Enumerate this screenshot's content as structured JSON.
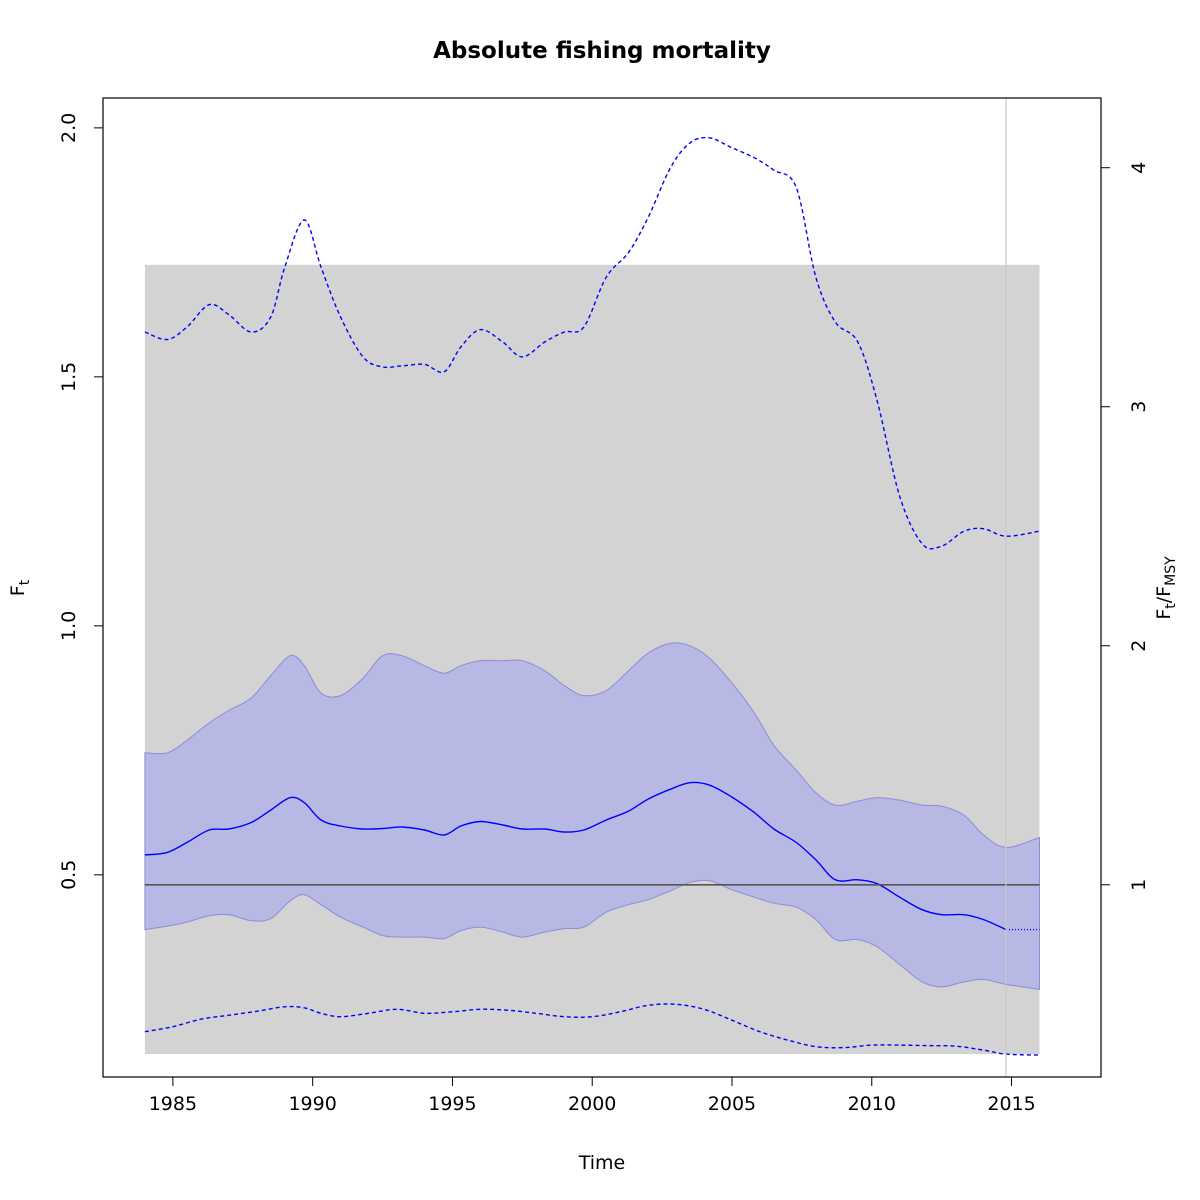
{
  "chart_data": {
    "type": "line",
    "title": "Absolute fishing mortality",
    "xlabel": "Time",
    "ylabel": "F",
    "ylabel_sub": "t",
    "y2label": {
      "num": "F",
      "num_sub": "t",
      "sep": "/",
      "den": "F",
      "den_sub": "MSY"
    },
    "xlim": [
      1982.5,
      2018.2
    ],
    "ylim": [
      0.094,
      2.06
    ],
    "x_ticks": [
      1985,
      1990,
      1995,
      2000,
      2005,
      2010,
      2015
    ],
    "x_tick_labels": [
      "1985",
      "1990",
      "1995",
      "2000",
      "2005",
      "2010",
      "2015"
    ],
    "y_ticks": [
      0.5,
      1.0,
      1.5,
      2.0
    ],
    "y_tick_labels": [
      "0.5",
      "1.0",
      "1.5",
      "2.0"
    ],
    "fmsy": 0.48,
    "y2_ticks": [
      1,
      2,
      3,
      4
    ],
    "y2_tick_labels": [
      "1",
      "2",
      "3",
      "4"
    ],
    "grey_region": {
      "x": [
        1984,
        2016
      ],
      "y": [
        0.14,
        1.725
      ]
    },
    "vertical_line_x": 2014.8,
    "colors": {
      "estimate": "#0000ff",
      "ci_fill": "#b3b3e6",
      "grey_region": "#d3d3d3",
      "fmsy_line": "#555555",
      "vertical_line": "#c8c8c8"
    },
    "series": [
      {
        "style": "solid",
        "x": [
          1984.0,
          1984.8,
          1985.5,
          1986.3,
          1987.0,
          1987.8,
          1988.5,
          1989.2,
          1989.7,
          1990.3,
          1991.0,
          1991.8,
          1992.5,
          1993.2,
          1994.0,
          1994.7,
          1995.3,
          1996.0,
          1996.8,
          1997.5,
          1998.3,
          1999.0,
          1999.7,
          2000.5,
          2001.3,
          2002.0,
          2002.8,
          2003.5,
          2004.2,
          2005.0,
          2005.8,
          2006.5,
          2007.3,
          2008.0,
          2008.7,
          2009.5,
          2010.2,
          2011.0,
          2011.8,
          2012.5,
          2013.3,
          2014.0,
          2014.8
        ],
        "y": [
          0.54,
          0.545,
          0.565,
          0.59,
          0.592,
          0.605,
          0.63,
          0.655,
          0.645,
          0.61,
          0.598,
          0.592,
          0.593,
          0.596,
          0.59,
          0.58,
          0.598,
          0.607,
          0.6,
          0.592,
          0.592,
          0.586,
          0.59,
          0.61,
          0.628,
          0.652,
          0.672,
          0.685,
          0.68,
          0.656,
          0.625,
          0.592,
          0.565,
          0.53,
          0.49,
          0.49,
          0.482,
          0.455,
          0.43,
          0.42,
          0.42,
          0.41,
          0.39
        ]
      },
      {
        "style": "dotted",
        "x": [
          2014.8,
          2016.0
        ],
        "y": [
          0.39,
          0.39
        ]
      },
      {
        "style": "dashed",
        "x": [
          1984.0,
          1984.8,
          1985.5,
          1986.3,
          1987.0,
          1987.8,
          1988.5,
          1989.0,
          1989.7,
          1990.3,
          1991.0,
          1991.8,
          1992.5,
          1993.2,
          1994.0,
          1994.7,
          1995.3,
          1996.0,
          1996.8,
          1997.5,
          1998.3,
          1999.0,
          1999.7,
          2000.5,
          2001.3,
          2002.0,
          2002.8,
          2003.5,
          2004.2,
          2005.0,
          2005.8,
          2006.5,
          2007.3,
          2008.0,
          2008.7,
          2009.5,
          2010.2,
          2011.0,
          2011.8,
          2012.5,
          2013.3,
          2014.0,
          2014.8,
          2016.0
        ],
        "y": [
          1.59,
          1.575,
          1.6,
          1.645,
          1.625,
          1.59,
          1.62,
          1.72,
          1.815,
          1.72,
          1.62,
          1.54,
          1.52,
          1.522,
          1.525,
          1.51,
          1.56,
          1.595,
          1.57,
          1.54,
          1.57,
          1.59,
          1.6,
          1.7,
          1.75,
          1.82,
          1.92,
          1.97,
          1.98,
          1.96,
          1.94,
          1.915,
          1.88,
          1.7,
          1.61,
          1.57,
          1.45,
          1.26,
          1.165,
          1.16,
          1.19,
          1.195,
          1.18,
          1.19
        ]
      },
      {
        "style": "dashed",
        "x": [
          1984.0,
          1985.0,
          1986.0,
          1987.0,
          1988.0,
          1989.0,
          1989.7,
          1990.3,
          1991.0,
          1992.0,
          1993.0,
          1994.0,
          1995.0,
          1996.0,
          1997.0,
          1998.0,
          1999.0,
          2000.0,
          2001.0,
          2002.0,
          2003.0,
          2004.0,
          2005.0,
          2006.0,
          2007.0,
          2008.0,
          2009.0,
          2010.0,
          2011.0,
          2012.0,
          2013.0,
          2014.0,
          2014.8,
          2016.0
        ],
        "y": [
          0.185,
          0.195,
          0.21,
          0.218,
          0.226,
          0.235,
          0.233,
          0.222,
          0.215,
          0.222,
          0.23,
          0.222,
          0.225,
          0.23,
          0.228,
          0.222,
          0.215,
          0.215,
          0.225,
          0.238,
          0.24,
          0.23,
          0.208,
          0.185,
          0.168,
          0.155,
          0.153,
          0.158,
          0.158,
          0.157,
          0.156,
          0.148,
          0.14,
          0.138
        ]
      }
    ],
    "ci_band": {
      "x": [
        1984.0,
        1984.8,
        1985.5,
        1986.3,
        1987.0,
        1987.8,
        1988.5,
        1989.2,
        1989.7,
        1990.3,
        1991.0,
        1991.8,
        1992.5,
        1993.2,
        1994.0,
        1994.7,
        1995.3,
        1996.0,
        1996.8,
        1997.5,
        1998.3,
        1999.0,
        1999.7,
        2000.5,
        2001.3,
        2002.0,
        2002.8,
        2003.5,
        2004.2,
        2005.0,
        2005.8,
        2006.5,
        2007.3,
        2008.0,
        2008.7,
        2009.5,
        2010.2,
        2011.0,
        2011.8,
        2012.5,
        2013.3,
        2014.0,
        2014.8,
        2016.0
      ],
      "lower": [
        0.39,
        0.397,
        0.405,
        0.418,
        0.42,
        0.408,
        0.412,
        0.448,
        0.46,
        0.44,
        0.415,
        0.395,
        0.378,
        0.375,
        0.375,
        0.372,
        0.388,
        0.395,
        0.385,
        0.375,
        0.385,
        0.392,
        0.395,
        0.425,
        0.44,
        0.45,
        0.468,
        0.485,
        0.488,
        0.47,
        0.455,
        0.443,
        0.435,
        0.41,
        0.37,
        0.37,
        0.355,
        0.32,
        0.285,
        0.275,
        0.285,
        0.29,
        0.28,
        0.27
      ],
      "upper": [
        0.745,
        0.745,
        0.77,
        0.805,
        0.83,
        0.855,
        0.9,
        0.94,
        0.92,
        0.865,
        0.86,
        0.895,
        0.94,
        0.94,
        0.92,
        0.905,
        0.92,
        0.93,
        0.93,
        0.93,
        0.91,
        0.88,
        0.86,
        0.87,
        0.91,
        0.945,
        0.965,
        0.96,
        0.935,
        0.885,
        0.825,
        0.76,
        0.71,
        0.665,
        0.64,
        0.648,
        0.655,
        0.65,
        0.64,
        0.638,
        0.62,
        0.58,
        0.555,
        0.575
      ]
    }
  }
}
